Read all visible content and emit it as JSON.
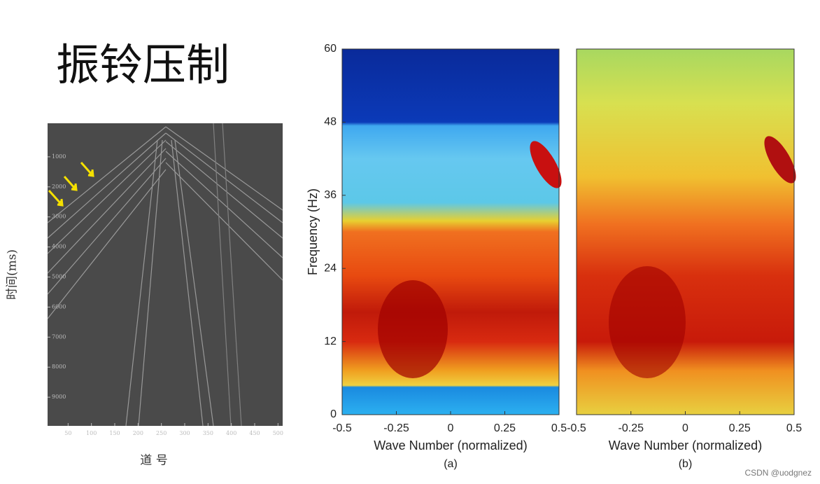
{
  "title": "振铃压制",
  "seismic": {
    "ylabel": "时间(ms)",
    "xlabel": "道 号",
    "xlim": [
      0,
      510
    ],
    "ylim": [
      0,
      10000
    ],
    "xticks": [
      50,
      100,
      150,
      200,
      250,
      300,
      350,
      400,
      450,
      500
    ],
    "yticks": [
      1000,
      2000,
      3000,
      4000,
      5000,
      6000,
      7000,
      8000,
      9000
    ]
  },
  "spectra": [
    {
      "caption": "(a)",
      "xlabel": "Wave Number (normalized)",
      "ylabel": "Frequency (Hz)",
      "xlim": [
        -0.5,
        0.5
      ],
      "ylim": [
        0,
        60
      ],
      "xticks": [
        -0.5,
        -0.25,
        0,
        0.25,
        0.5
      ],
      "yticks": [
        0,
        12,
        24,
        36,
        48,
        60
      ]
    },
    {
      "caption": "(b)",
      "xlabel": "Wave Number (normalized)",
      "xlim": [
        -0.5,
        0.5
      ],
      "xticks": [
        -0.5,
        -0.25,
        0,
        0.25,
        0.5
      ]
    }
  ],
  "watermark": "CSDN @uodgnez"
}
